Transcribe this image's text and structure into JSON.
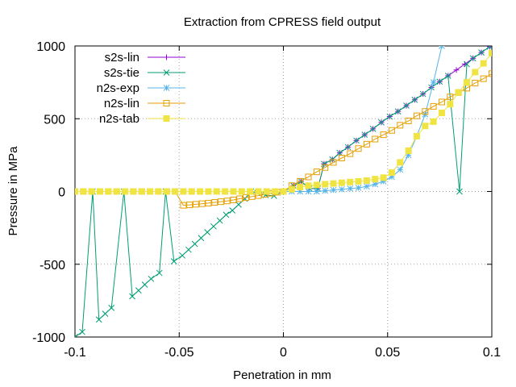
{
  "chart_data": {
    "type": "line",
    "title": "Extraction from CPRESS field output",
    "xlabel": "Penetration in mm",
    "ylabel": "Pressure in MPa",
    "xlim": [
      -0.1,
      0.1
    ],
    "ylim": [
      -1000,
      1000
    ],
    "xticks": [
      -0.1,
      -0.05,
      0,
      0.05,
      0.1
    ],
    "yticks": [
      -1000,
      -500,
      0,
      500,
      1000
    ],
    "xtick_labels": [
      "-0.1",
      "-0.05",
      "0",
      "0.05",
      "0.1"
    ],
    "ytick_labels": [
      "-1000",
      "-500",
      "0",
      "500",
      "1000"
    ],
    "grid": true,
    "legend_position": "top-left",
    "series": [
      {
        "name": "s2s-lin",
        "color": "#9400d3",
        "marker": "plus",
        "x": [
          0.0,
          0.0048,
          0.0085,
          0.0125,
          0.0165,
          0.0195,
          0.0235,
          0.027,
          0.031,
          0.035,
          0.039,
          0.043,
          0.047,
          0.051,
          0.055,
          0.059,
          0.063,
          0.067,
          0.071,
          0.075,
          0.079,
          0.083,
          0.087,
          0.091,
          0.095,
          0.099
        ],
        "y": [
          0,
          40,
          70,
          20,
          20,
          190,
          220,
          265,
          305,
          350,
          390,
          430,
          475,
          515,
          550,
          590,
          630,
          670,
          715,
          755,
          795,
          835,
          875,
          915,
          955,
          995
        ]
      },
      {
        "name": "s2s-tie",
        "color": "#009e73",
        "marker": "x",
        "x": [
          -0.1,
          -0.0965,
          -0.0915,
          -0.0885,
          -0.0855,
          -0.0825,
          -0.0765,
          -0.0725,
          -0.0695,
          -0.0665,
          -0.0635,
          -0.0595,
          -0.0565,
          -0.0525,
          -0.0485,
          -0.0455,
          -0.0425,
          -0.0395,
          -0.0365,
          -0.0335,
          -0.0305,
          -0.0275,
          -0.0245,
          -0.0215,
          -0.0185,
          -0.0155,
          -0.0125,
          -0.0085,
          -0.0045,
          0.0,
          0.0048,
          0.0085,
          0.0125,
          0.0165,
          0.0195,
          0.0235,
          0.027,
          0.031,
          0.035,
          0.039,
          0.043,
          0.047,
          0.051,
          0.055,
          0.059,
          0.063,
          0.067,
          0.071,
          0.075,
          0.079,
          0.0845,
          0.088,
          0.091,
          0.095,
          0.099
        ],
        "y": [
          -1000,
          -965,
          0,
          -880,
          -840,
          -800,
          0,
          -720,
          -680,
          -640,
          -600,
          -560,
          0,
          -480,
          -440,
          -400,
          -360,
          -320,
          -280,
          -240,
          -200,
          -160,
          -130,
          -90,
          -50,
          0,
          -10,
          -25,
          -30,
          0,
          40,
          70,
          20,
          20,
          190,
          220,
          265,
          305,
          350,
          390,
          430,
          475,
          515,
          550,
          590,
          630,
          670,
          715,
          755,
          795,
          0,
          875,
          915,
          955,
          995
        ]
      },
      {
        "name": "n2s-exp",
        "color": "#56b4e9",
        "marker": "star",
        "x": [
          0.0,
          0.004,
          0.008,
          0.012,
          0.016,
          0.02,
          0.024,
          0.028,
          0.032,
          0.036,
          0.04,
          0.044,
          0.048,
          0.052,
          0.056,
          0.06,
          0.064,
          0.068,
          0.072,
          0.076,
          0.08
        ],
        "y": [
          0,
          0,
          0,
          0,
          0,
          5,
          10,
          15,
          20,
          25,
          35,
          50,
          70,
          100,
          150,
          250,
          380,
          530,
          750,
          1000,
          1300
        ]
      },
      {
        "name": "n2s-lin",
        "color": "#e69f00",
        "marker": "square",
        "x": [
          -0.1,
          -0.096,
          -0.092,
          -0.088,
          -0.084,
          -0.08,
          -0.076,
          -0.072,
          -0.068,
          -0.064,
          -0.06,
          -0.056,
          -0.052,
          -0.048,
          -0.045,
          -0.042,
          -0.039,
          -0.036,
          -0.033,
          -0.03,
          -0.027,
          -0.024,
          -0.021,
          -0.018,
          -0.015,
          -0.012,
          -0.009,
          -0.006,
          -0.003,
          0.0,
          0.004,
          0.008,
          0.012,
          0.016,
          0.02,
          0.024,
          0.028,
          0.032,
          0.036,
          0.04,
          0.044,
          0.048,
          0.052,
          0.056,
          0.06,
          0.064,
          0.068,
          0.072,
          0.076,
          0.08,
          0.084,
          0.088,
          0.092,
          0.096,
          0.1
        ],
        "y": [
          0,
          0,
          0,
          0,
          0,
          0,
          0,
          0,
          0,
          0,
          0,
          0,
          0,
          -95,
          -92,
          -88,
          -84,
          -80,
          -75,
          -70,
          -65,
          -58,
          -50,
          -42,
          -35,
          -28,
          -20,
          -12,
          -5,
          0,
          40,
          70,
          100,
          135,
          165,
          200,
          230,
          260,
          295,
          325,
          360,
          390,
          420,
          455,
          485,
          520,
          550,
          585,
          615,
          650,
          680,
          710,
          745,
          775,
          810
        ]
      },
      {
        "name": "n2s-tab",
        "color": "#f0e442",
        "marker": "filled-square",
        "x": [
          -0.1,
          -0.096,
          -0.092,
          -0.088,
          -0.084,
          -0.08,
          -0.076,
          -0.072,
          -0.068,
          -0.064,
          -0.06,
          -0.056,
          -0.052,
          -0.048,
          -0.044,
          -0.04,
          -0.036,
          -0.032,
          -0.028,
          -0.024,
          -0.02,
          -0.016,
          -0.012,
          -0.008,
          -0.004,
          0.0,
          0.004,
          0.008,
          0.012,
          0.016,
          0.02,
          0.024,
          0.028,
          0.032,
          0.036,
          0.04,
          0.044,
          0.048,
          0.052,
          0.056,
          0.06,
          0.064,
          0.068,
          0.072,
          0.076,
          0.08,
          0.084,
          0.088,
          0.092,
          0.096,
          0.1
        ],
        "y": [
          0,
          0,
          0,
          0,
          0,
          0,
          0,
          0,
          0,
          0,
          0,
          0,
          0,
          0,
          0,
          0,
          0,
          0,
          0,
          0,
          0,
          0,
          0,
          0,
          0,
          0,
          15,
          30,
          40,
          45,
          50,
          55,
          60,
          65,
          70,
          75,
          85,
          95,
          130,
          200,
          280,
          380,
          450,
          480,
          540,
          600,
          680,
          750,
          820,
          880,
          950
        ]
      }
    ]
  }
}
